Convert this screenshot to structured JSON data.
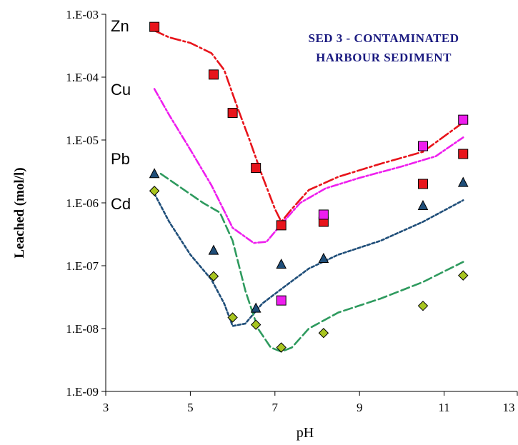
{
  "chart_data": {
    "type": "scatter",
    "title": "",
    "annotation_lines": [
      "SED 3 - CONTAMINATED",
      "HARBOUR SEDIMENT"
    ],
    "xlabel": "pH",
    "ylabel": "Leached (mol/l)",
    "xlim": [
      3,
      13
    ],
    "ylim": [
      1e-09,
      0.001
    ],
    "y_scale": "log",
    "x_ticks": [
      "3",
      "5",
      "7",
      "9",
      "11",
      "13"
    ],
    "y_ticks": [
      "1.E-09",
      "1.E-08",
      "1.E-07",
      "1.E-06",
      "1.E-05",
      "1.E-04",
      "1.E-03"
    ],
    "grid": false,
    "series_labels": [
      "Zn",
      "Cu",
      "Pb",
      "Cd"
    ],
    "series": [
      {
        "name": "Zn",
        "marker": "square",
        "color": "#e8141b",
        "points": [
          [
            4.15,
            0.00063
          ],
          [
            5.55,
            0.00011
          ],
          [
            6.0,
            2.7e-05
          ],
          [
            6.55,
            3.6e-06
          ],
          [
            7.15,
            4.4e-07
          ],
          [
            8.15,
            5e-07
          ],
          [
            10.5,
            2e-06
          ],
          [
            11.45,
            6e-06
          ]
        ],
        "model": [
          [
            4.15,
            0.00055
          ],
          [
            4.5,
            0.00043
          ],
          [
            5.0,
            0.00035
          ],
          [
            5.5,
            0.00024
          ],
          [
            5.8,
            0.00013
          ],
          [
            6.1,
            3.5e-05
          ],
          [
            6.4,
            1e-05
          ],
          [
            6.7,
            2.7e-06
          ],
          [
            7.0,
            8e-07
          ],
          [
            7.15,
            5e-07
          ],
          [
            7.4,
            8e-07
          ],
          [
            7.8,
            1.6e-06
          ],
          [
            8.5,
            2.6e-06
          ],
          [
            9.5,
            4.2e-06
          ],
          [
            10.5,
            6.5e-06
          ],
          [
            11.45,
            1.9e-05
          ]
        ]
      },
      {
        "name": "Cu",
        "marker": "square",
        "color": "#ee1eee",
        "points": [
          [
            7.15,
            2.8e-08
          ],
          [
            8.15,
            6.5e-07
          ],
          [
            10.5,
            8e-06
          ],
          [
            11.45,
            2.1e-05
          ]
        ],
        "model": [
          [
            4.15,
            6.5e-05
          ],
          [
            4.5,
            2.5e-05
          ],
          [
            5.0,
            7e-06
          ],
          [
            5.5,
            1.9e-06
          ],
          [
            6.0,
            4e-07
          ],
          [
            6.5,
            2.3e-07
          ],
          [
            6.8,
            2.4e-07
          ],
          [
            7.2,
            5e-07
          ],
          [
            7.6,
            1e-06
          ],
          [
            8.2,
            1.7e-06
          ],
          [
            9.0,
            2.5e-06
          ],
          [
            10.0,
            3.8e-06
          ],
          [
            10.8,
            5.5e-06
          ],
          [
            11.45,
            1.1e-05
          ]
        ]
      },
      {
        "name": "Pb",
        "marker": "triangle",
        "color": "#1f4e79",
        "points": [
          [
            4.15,
            2.9e-06
          ],
          [
            5.55,
            1.75e-07
          ],
          [
            6.55,
            2.1e-08
          ],
          [
            7.15,
            1.05e-07
          ],
          [
            8.15,
            1.3e-07
          ],
          [
            10.5,
            9e-07
          ],
          [
            11.45,
            2.1e-06
          ]
        ],
        "model": [
          [
            4.15,
            1.4e-06
          ],
          [
            4.5,
            5e-07
          ],
          [
            5.0,
            1.5e-07
          ],
          [
            5.5,
            6e-08
          ],
          [
            5.8,
            2.5e-08
          ],
          [
            6.0,
            1.1e-08
          ],
          [
            6.3,
            1.2e-08
          ],
          [
            6.7,
            2.5e-08
          ],
          [
            7.2,
            4.5e-08
          ],
          [
            7.8,
            9e-08
          ],
          [
            8.5,
            1.5e-07
          ],
          [
            9.5,
            2.5e-07
          ],
          [
            10.5,
            5e-07
          ],
          [
            11.45,
            1.1e-06
          ]
        ]
      },
      {
        "name": "Cd",
        "marker": "diamond",
        "color": "#a8c520",
        "points": [
          [
            4.15,
            1.55e-06
          ],
          [
            5.55,
            6.8e-08
          ],
          [
            6.0,
            1.5e-08
          ],
          [
            6.55,
            1.15e-08
          ],
          [
            7.15,
            5e-09
          ],
          [
            8.15,
            8.5e-09
          ],
          [
            10.5,
            2.3e-08
          ],
          [
            11.45,
            7e-08
          ]
        ],
        "model": [
          [
            4.3,
            2.9e-06
          ],
          [
            4.8,
            1.7e-06
          ],
          [
            5.3,
            1e-06
          ],
          [
            5.7,
            7e-07
          ],
          [
            6.0,
            2.5e-07
          ],
          [
            6.3,
            4e-08
          ],
          [
            6.6,
            1e-08
          ],
          [
            6.9,
            5e-09
          ],
          [
            7.15,
            4.3e-09
          ],
          [
            7.4,
            5e-09
          ],
          [
            7.8,
            1e-08
          ],
          [
            8.5,
            1.8e-08
          ],
          [
            9.5,
            3e-08
          ],
          [
            10.5,
            5.5e-08
          ],
          [
            11.45,
            1.15e-07
          ]
        ]
      }
    ],
    "model_colors": {
      "Zn": "#e8141b",
      "Cu": "#ee1eee",
      "Pb": "#1f4e79",
      "Cd": "#2e9a5e"
    }
  }
}
